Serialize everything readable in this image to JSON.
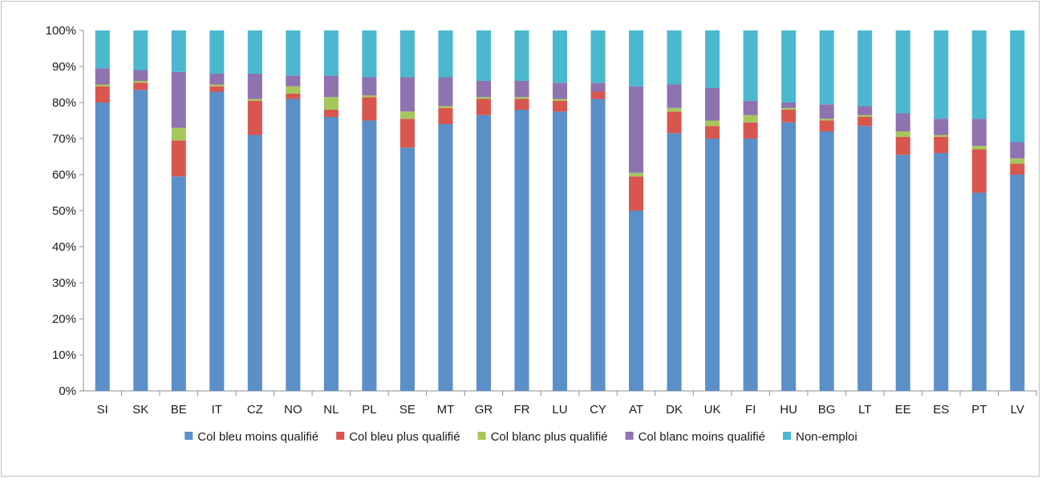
{
  "chart_data": {
    "type": "bar",
    "stacked": "percent",
    "categories": [
      "SI",
      "SK",
      "BE",
      "IT",
      "CZ",
      "NO",
      "NL",
      "PL",
      "SE",
      "MT",
      "GR",
      "FR",
      "LU",
      "CY",
      "AT",
      "DK",
      "UK",
      "FI",
      "HU",
      "BG",
      "LT",
      "EE",
      "ES",
      "PT",
      "LV"
    ],
    "series": [
      {
        "name": "Col bleu moins qualifié",
        "color": "#5b8fc7",
        "values": [
          80,
          83.5,
          59.5,
          83,
          71,
          81,
          76,
          75,
          67.5,
          74,
          76.5,
          78,
          77.5,
          81,
          50,
          71.5,
          70,
          70,
          74.5,
          72,
          73.5,
          65.5,
          66,
          55,
          60
        ]
      },
      {
        "name": "Col bleu plus qualifié",
        "color": "#d9564f",
        "values": [
          4.5,
          2,
          10,
          1.5,
          9.5,
          1.5,
          2,
          6.5,
          8,
          4.5,
          4.5,
          3,
          3,
          2,
          9.5,
          6,
          3.5,
          4.5,
          3.5,
          3,
          2.5,
          5,
          4.5,
          12,
          3
        ]
      },
      {
        "name": "Col blanc plus qualifié",
        "color": "#a5c85a",
        "values": [
          0.5,
          0.5,
          3.5,
          0.5,
          0.5,
          2,
          3.5,
          0.5,
          2,
          0.5,
          0.5,
          0.5,
          0.5,
          0,
          1,
          1,
          1.5,
          2,
          0.5,
          0.5,
          0.5,
          1.5,
          0.5,
          1,
          1.5
        ]
      },
      {
        "name": "Col blanc moins qualifié",
        "color": "#8f72b0",
        "values": [
          4.5,
          3,
          15.5,
          3,
          7,
          3,
          6,
          5,
          9.5,
          8,
          4.5,
          4.5,
          4.5,
          2.5,
          24,
          6.5,
          9,
          4,
          1.5,
          4,
          2.5,
          5,
          4.5,
          7.5,
          4.5
        ]
      },
      {
        "name": "Non-emploi",
        "color": "#4bb8d0",
        "values": [
          10.5,
          11,
          11.5,
          12,
          12,
          12.5,
          12.5,
          13,
          13,
          13,
          14,
          14,
          14.5,
          14.5,
          15.5,
          15,
          16,
          19.5,
          20,
          20.5,
          21,
          23,
          24.5,
          24.5,
          31
        ]
      }
    ],
    "ylim": [
      0,
      100
    ],
    "yticks": [
      "0%",
      "10%",
      "20%",
      "30%",
      "40%",
      "50%",
      "60%",
      "70%",
      "80%",
      "90%",
      "100%"
    ],
    "grid": false,
    "legend_position": "bottom",
    "title": "",
    "xlabel": "",
    "ylabel": ""
  }
}
